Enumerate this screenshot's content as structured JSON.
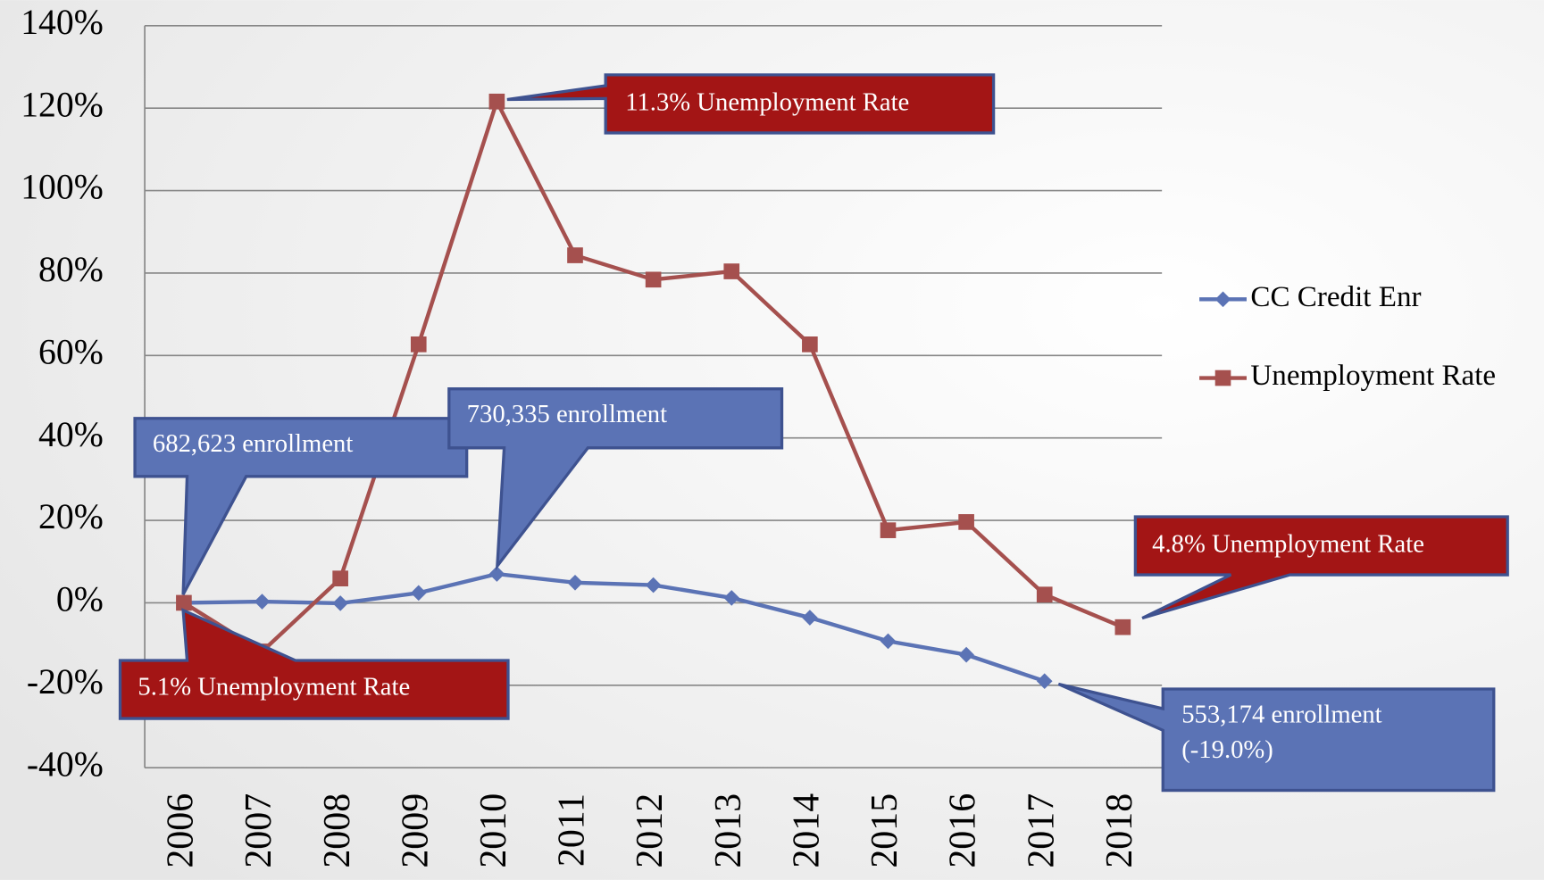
{
  "chart_data": {
    "type": "line",
    "categories": [
      "2006",
      "2007",
      "2008",
      "2009",
      "2010",
      "2011",
      "2012",
      "2013",
      "2014",
      "2015",
      "2016",
      "2017",
      "2018"
    ],
    "series": [
      {
        "name": "CC Credit Enr",
        "color": "#5b73b5",
        "marker": "diamond",
        "values": [
          0,
          0.3,
          -0.1,
          2.4,
          7.0,
          4.9,
          4.3,
          1.2,
          -3.6,
          -9.3,
          -12.6,
          -19.0,
          null
        ]
      },
      {
        "name": "Unemployment Rate",
        "color": "#a5504e",
        "marker": "square",
        "values": [
          0,
          -11.8,
          5.9,
          62.7,
          121.6,
          84.3,
          78.4,
          80.4,
          62.7,
          17.6,
          19.6,
          2.0,
          -5.9
        ]
      }
    ],
    "ylim": [
      -40,
      140
    ],
    "yticks": [
      {
        "value": -40,
        "label": "-40%"
      },
      {
        "value": -20,
        "label": "-20%"
      },
      {
        "value": 0,
        "label": "0%"
      },
      {
        "value": 20,
        "label": "20%"
      },
      {
        "value": 40,
        "label": "40%"
      },
      {
        "value": 60,
        "label": "60%"
      },
      {
        "value": 80,
        "label": "80%"
      },
      {
        "value": 100,
        "label": "100%"
      },
      {
        "value": 120,
        "label": "120%"
      },
      {
        "value": 140,
        "label": "140%"
      }
    ],
    "grid": true,
    "legend": "right",
    "annotations": [
      {
        "lines": [
          "682,623 enrollment"
        ]
      },
      {
        "lines": [
          "730,335 enrollment"
        ]
      },
      {
        "lines": [
          "11.3% Unemployment Rate"
        ]
      },
      {
        "lines": [
          "4.8% Unemployment Rate"
        ]
      },
      {
        "lines": [
          "5.1% Unemployment Rate"
        ]
      },
      {
        "lines": [
          "553,174 enrollment",
          "(-19.0%)"
        ]
      }
    ]
  }
}
